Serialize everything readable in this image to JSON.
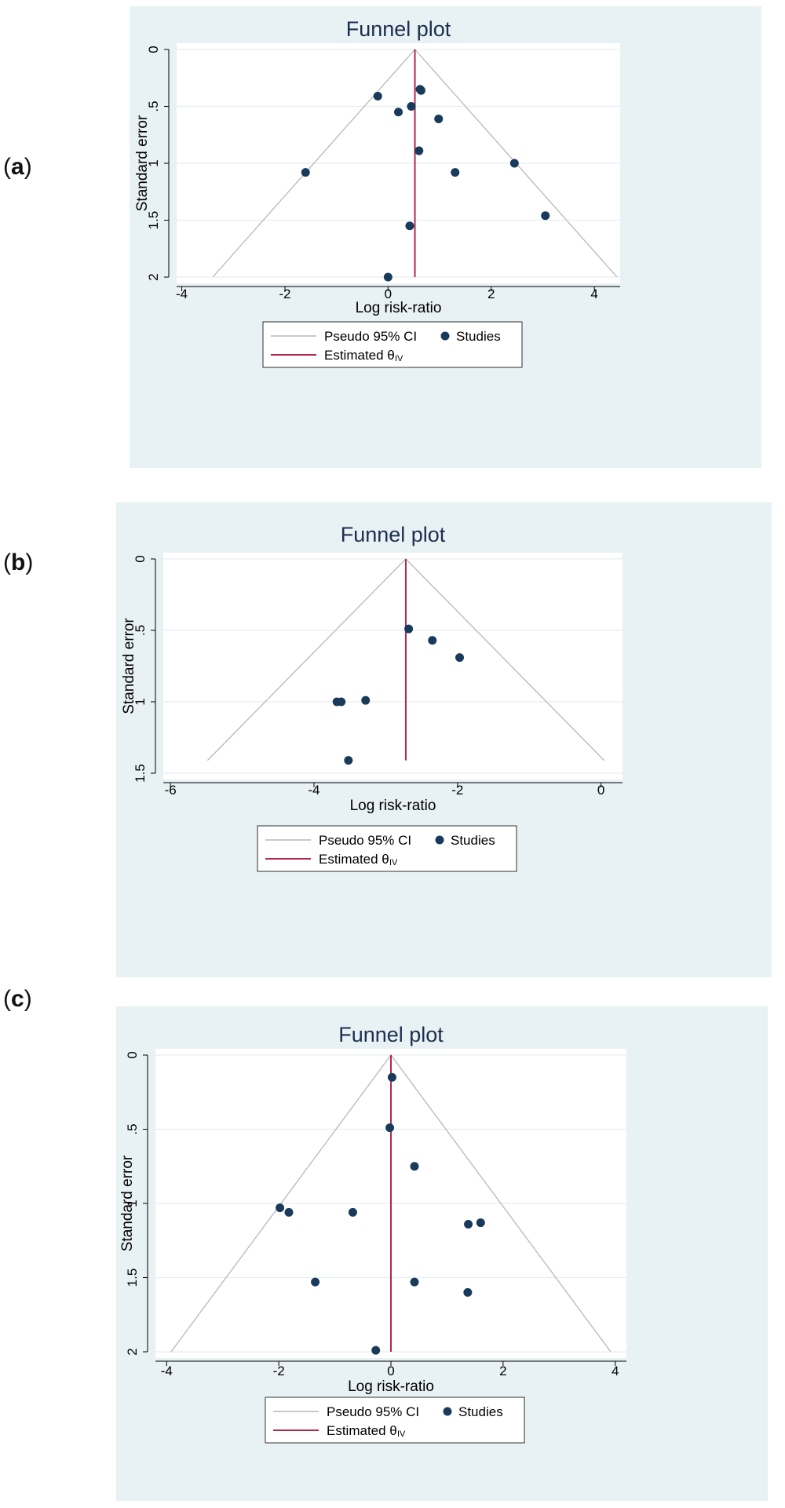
{
  "chart_data": [
    {
      "panel_label": "a",
      "type": "scatter",
      "title": "Funnel plot",
      "xlabel": "Log risk-ratio",
      "ylabel": "Standard error",
      "xlim": [
        -4.1,
        4.5
      ],
      "ylim": [
        0,
        2
      ],
      "y_reversed": true,
      "xticks": [
        -4,
        -2,
        0,
        2,
        4
      ],
      "yticks": [
        0,
        0.5,
        1,
        1.5,
        2
      ],
      "xtick_labels": [
        "-4",
        "-2",
        "0",
        "2",
        "4"
      ],
      "ytick_labels": [
        "0",
        ".5",
        "1",
        "1.5",
        "2"
      ],
      "grid": true,
      "estimate": 0.52,
      "funnel_se_max": 2,
      "legend": {
        "ci_label": "Pseudo 95% CI",
        "studies_label": "Studies",
        "estimate_label": "Estimated θ",
        "estimate_sub": "IV",
        "placement": "bottom"
      },
      "series": [
        {
          "name": "Studies",
          "points": [
            {
              "x": -0.2,
              "y": 0.41
            },
            {
              "x": 0.62,
              "y": 0.35
            },
            {
              "x": 0.64,
              "y": 0.36
            },
            {
              "x": 0.2,
              "y": 0.55
            },
            {
              "x": 0.45,
              "y": 0.5
            },
            {
              "x": 0.98,
              "y": 0.61
            },
            {
              "x": 0.6,
              "y": 0.89
            },
            {
              "x": -1.6,
              "y": 1.08
            },
            {
              "x": 1.3,
              "y": 1.08
            },
            {
              "x": 2.45,
              "y": 1.0
            },
            {
              "x": 3.05,
              "y": 1.46
            },
            {
              "x": 0.42,
              "y": 1.55
            },
            {
              "x": 0.0,
              "y": 2.0
            }
          ]
        }
      ]
    },
    {
      "panel_label": "b",
      "type": "scatter",
      "title": "Funnel plot",
      "xlabel": "Log risk-ratio",
      "ylabel": "Standard error",
      "xlim": [
        -6.1,
        0.3
      ],
      "ylim": [
        0,
        1.5
      ],
      "y_reversed": true,
      "xticks": [
        -6,
        -4,
        -2,
        0
      ],
      "yticks": [
        0,
        0.5,
        1,
        1.5
      ],
      "xtick_labels": [
        "-6",
        "-4",
        "-2",
        "0"
      ],
      "ytick_labels": [
        "0",
        ".5",
        "1",
        "1.5"
      ],
      "grid": true,
      "estimate": -2.72,
      "funnel_se_max": 1.41,
      "legend": {
        "ci_label": "Pseudo 95% CI",
        "studies_label": "Studies",
        "estimate_label": "Estimated θ",
        "estimate_sub": "IV",
        "placement": "bottom"
      },
      "series": [
        {
          "name": "Studies",
          "points": [
            {
              "x": -2.68,
              "y": 0.49
            },
            {
              "x": -2.35,
              "y": 0.57
            },
            {
              "x": -1.97,
              "y": 0.69
            },
            {
              "x": -3.68,
              "y": 1.0
            },
            {
              "x": -3.62,
              "y": 1.0
            },
            {
              "x": -3.28,
              "y": 0.99
            },
            {
              "x": -3.52,
              "y": 1.41
            }
          ]
        }
      ]
    },
    {
      "panel_label": "c",
      "type": "scatter",
      "title": "Funnel plot",
      "xlabel": "Log risk-ratio",
      "ylabel": "Standard error",
      "xlim": [
        -4.2,
        4.2
      ],
      "ylim": [
        0,
        2
      ],
      "y_reversed": true,
      "xticks": [
        -4,
        -2,
        0,
        2,
        4
      ],
      "yticks": [
        0,
        0.5,
        1,
        1.5,
        2
      ],
      "xtick_labels": [
        "-4",
        "-2",
        "0",
        "2",
        "4"
      ],
      "ytick_labels": [
        "0",
        ".5",
        "1",
        "1.5",
        "2"
      ],
      "grid": true,
      "estimate": 0.0,
      "funnel_se_max": 2,
      "legend": {
        "ci_label": "Pseudo 95% CI",
        "studies_label": "Studies",
        "estimate_label": "Estimated θ",
        "estimate_sub": "IV",
        "placement": "bottom"
      },
      "series": [
        {
          "name": "Studies",
          "points": [
            {
              "x": 0.02,
              "y": 0.15
            },
            {
              "x": -0.02,
              "y": 0.49
            },
            {
              "x": 0.42,
              "y": 0.75
            },
            {
              "x": -1.98,
              "y": 1.03
            },
            {
              "x": -1.82,
              "y": 1.06
            },
            {
              "x": -0.68,
              "y": 1.06
            },
            {
              "x": 1.38,
              "y": 1.14
            },
            {
              "x": 1.6,
              "y": 1.13
            },
            {
              "x": -1.35,
              "y": 1.53
            },
            {
              "x": 0.42,
              "y": 1.53
            },
            {
              "x": 1.37,
              "y": 1.6
            },
            {
              "x": -0.27,
              "y": 1.99
            }
          ]
        }
      ]
    }
  ],
  "colors": {
    "panel_bg": "#e8f1f3",
    "plot_bg": "#ffffff",
    "point": "#1a3a5c",
    "estimate_line": "#b3264e",
    "ci_line": "#b8b8b8",
    "grid": "#e6eef0",
    "title": "#1b2f4e"
  }
}
